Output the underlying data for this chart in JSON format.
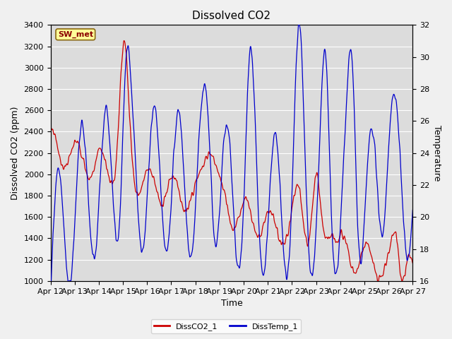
{
  "title": "Dissolved CO2",
  "ylabel_left": "Dissolved CO2 (ppm)",
  "ylabel_right": "Temperature",
  "xlabel": "Time",
  "ylim_left": [
    1000,
    3400
  ],
  "ylim_right": [
    16,
    32
  ],
  "yticks_left": [
    1000,
    1200,
    1400,
    1600,
    1800,
    2000,
    2200,
    2400,
    2600,
    2800,
    3000,
    3200,
    3400
  ],
  "yticks_right": [
    16,
    18,
    20,
    22,
    24,
    26,
    28,
    30,
    32
  ],
  "xtick_labels": [
    "Apr 12",
    "Apr 13",
    "Apr 14",
    "Apr 15",
    "Apr 16",
    "Apr 17",
    "Apr 18",
    "Apr 19",
    "Apr 20",
    "Apr 21",
    "Apr 22",
    "Apr 23",
    "Apr 24",
    "Apr 25",
    "Apr 26",
    "Apr 27"
  ],
  "annotation_text": "SW_met",
  "annotation_color": "#8B0000",
  "annotation_bg": "#FFFF99",
  "legend_labels": [
    "DissCO2_1",
    "DissTemp_1"
  ],
  "line_colors": [
    "#CC0000",
    "#0000CC"
  ],
  "background_color": "#DCDCDC",
  "fig_background": "#F0F0F0",
  "grid_color": "#FFFFFF",
  "title_fontsize": 11,
  "axis_fontsize": 9,
  "tick_fontsize": 8
}
